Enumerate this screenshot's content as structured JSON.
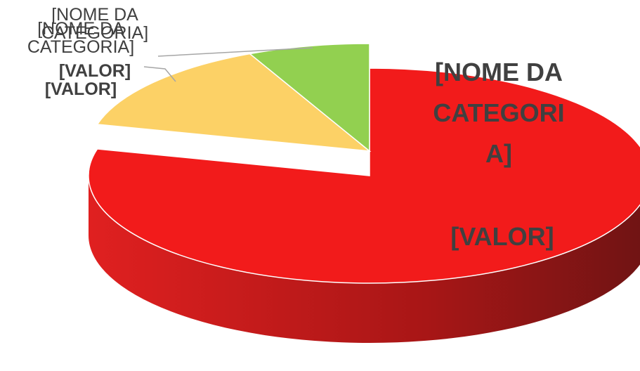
{
  "chart_data": {
    "type": "pie",
    "categories": [
      "[NOME DA CATEGORIA]",
      "[NOME DA CATEGORIA]",
      "[NOME DA CATEGORIA]"
    ],
    "values": [
      79,
      14,
      7
    ],
    "value_labels": [
      "[VALOR]",
      "[VALOR]",
      "[VALOR]"
    ],
    "colors": [
      "#f21b1b",
      "#fcd166",
      "#92d050"
    ]
  }
}
